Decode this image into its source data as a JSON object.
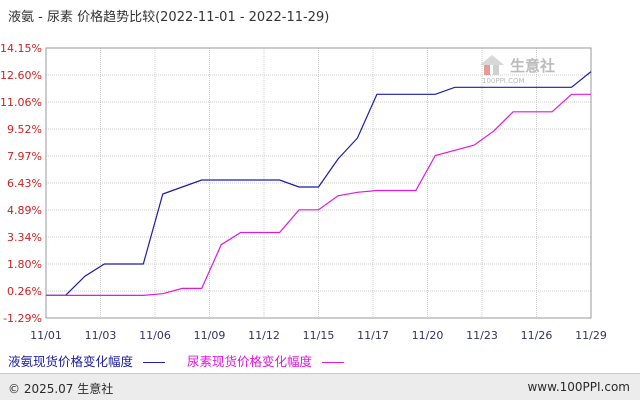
{
  "colors": {
    "series1": "#1c1ca6",
    "series2": "#e018e0",
    "ytick": "#cc2222",
    "xtick": "#333366",
    "grid": "#cccccc",
    "watermark": "#bbbbbb"
  },
  "footer": {
    "copyright": "© 2025.07 生意社",
    "url": "www.100PPI.com"
  },
  "watermark": {
    "name": "生意社",
    "url": "100PPI.COM"
  },
  "chart_data": {
    "type": "line",
    "title": "液氨 - 尿素 价格趋势比较(2022-11-01 - 2022-11-29)",
    "xlabel": "",
    "ylabel": "",
    "y_ticks": [
      "14.15%",
      "12.60%",
      "11.06%",
      "9.52%",
      "7.97%",
      "6.43%",
      "4.89%",
      "3.34%",
      "1.80%",
      "0.26%",
      "-1.29%"
    ],
    "ylim": [
      -1.29,
      14.15
    ],
    "x_tick_labels": [
      "11/01",
      "11/03",
      "11/06",
      "11/09",
      "11/12",
      "11/15",
      "11/17",
      "11/20",
      "11/23",
      "11/26",
      "11/29"
    ],
    "x_range_days": [
      1,
      29
    ],
    "grid": true,
    "legend_position": "bottom-left",
    "series": [
      {
        "name": "液氨现货价格变化幅度",
        "points": [
          {
            "day": 1,
            "pct": 0.0
          },
          {
            "day": 2,
            "pct": 0.0
          },
          {
            "day": 3,
            "pct": 1.1
          },
          {
            "day": 4,
            "pct": 1.8
          },
          {
            "day": 5,
            "pct": 1.8
          },
          {
            "day": 6,
            "pct": 1.8
          },
          {
            "day": 7,
            "pct": 5.8
          },
          {
            "day": 8,
            "pct": 6.2
          },
          {
            "day": 9,
            "pct": 6.6
          },
          {
            "day": 10,
            "pct": 6.6
          },
          {
            "day": 11,
            "pct": 6.6
          },
          {
            "day": 12,
            "pct": 6.6
          },
          {
            "day": 13,
            "pct": 6.6
          },
          {
            "day": 14,
            "pct": 6.2
          },
          {
            "day": 15,
            "pct": 6.2
          },
          {
            "day": 16,
            "pct": 7.8
          },
          {
            "day": 17,
            "pct": 9.0
          },
          {
            "day": 18,
            "pct": 11.5
          },
          {
            "day": 19,
            "pct": 11.5
          },
          {
            "day": 20,
            "pct": 11.5
          },
          {
            "day": 21,
            "pct": 11.5
          },
          {
            "day": 22,
            "pct": 11.9
          },
          {
            "day": 23,
            "pct": 11.9
          },
          {
            "day": 24,
            "pct": 11.9
          },
          {
            "day": 25,
            "pct": 11.9
          },
          {
            "day": 26,
            "pct": 11.9
          },
          {
            "day": 27,
            "pct": 11.9
          },
          {
            "day": 28,
            "pct": 11.9
          },
          {
            "day": 29,
            "pct": 12.8
          }
        ]
      },
      {
        "name": "尿素现货价格变化幅度",
        "points": [
          {
            "day": 1,
            "pct": 0.0
          },
          {
            "day": 2,
            "pct": 0.0
          },
          {
            "day": 3,
            "pct": 0.0
          },
          {
            "day": 4,
            "pct": 0.0
          },
          {
            "day": 5,
            "pct": 0.0
          },
          {
            "day": 6,
            "pct": 0.0
          },
          {
            "day": 7,
            "pct": 0.1
          },
          {
            "day": 8,
            "pct": 0.4
          },
          {
            "day": 9,
            "pct": 0.4
          },
          {
            "day": 10,
            "pct": 2.9
          },
          {
            "day": 11,
            "pct": 3.6
          },
          {
            "day": 12,
            "pct": 3.6
          },
          {
            "day": 13,
            "pct": 3.6
          },
          {
            "day": 14,
            "pct": 4.9
          },
          {
            "day": 15,
            "pct": 4.9
          },
          {
            "day": 16,
            "pct": 5.7
          },
          {
            "day": 17,
            "pct": 5.9
          },
          {
            "day": 18,
            "pct": 6.0
          },
          {
            "day": 19,
            "pct": 6.0
          },
          {
            "day": 20,
            "pct": 6.0
          },
          {
            "day": 21,
            "pct": 8.0
          },
          {
            "day": 22,
            "pct": 8.3
          },
          {
            "day": 23,
            "pct": 8.6
          },
          {
            "day": 24,
            "pct": 9.4
          },
          {
            "day": 25,
            "pct": 10.5
          },
          {
            "day": 26,
            "pct": 10.5
          },
          {
            "day": 27,
            "pct": 10.5
          },
          {
            "day": 28,
            "pct": 11.5
          },
          {
            "day": 29,
            "pct": 11.5
          }
        ]
      }
    ]
  }
}
